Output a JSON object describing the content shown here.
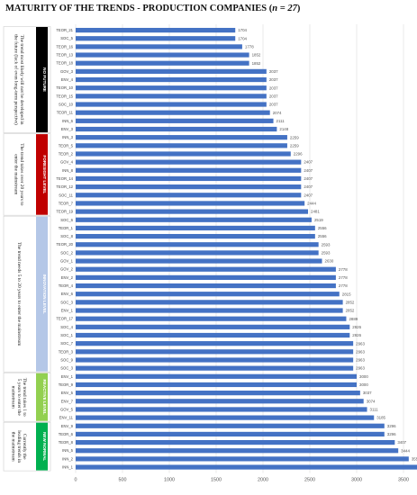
{
  "title": {
    "prefix": "MATURITY OF THE TRENDS - PRODUCTION COMPANIES (",
    "italic": "n = 27",
    "suffix": ")"
  },
  "colors": {
    "bar": "#4472c4",
    "grid": "#d9d9d9"
  },
  "chart_data": {
    "type": "bar",
    "orientation": "horizontal",
    "xlim": [
      0,
      3500
    ],
    "xticks": [
      0,
      500,
      1000,
      1500,
      2000,
      2500,
      3000,
      3500
    ],
    "grid": true,
    "categories": [
      "TEOR_21",
      "SOC_5",
      "TEOR_16",
      "TEOR_13",
      "TEOR_18",
      "GOV_3",
      "ENV_4",
      "TEOR_10",
      "TEOR_15",
      "SOC_10",
      "TEOR_11",
      "INN_6",
      "ENV_3",
      "INN_3",
      "TEOR_5",
      "TEOR_2",
      "GOV_4",
      "INN_8",
      "TEOR_14",
      "TEOR_12",
      "SOC_11",
      "TEOR_7",
      "TEOR_19",
      "SOC_6",
      "TEOR_1",
      "SOC_8",
      "TEOR_20",
      "SOC_2",
      "GOV_1",
      "GOV_2",
      "ENV_2",
      "TEOR_4",
      "ENV_6",
      "SOC_3",
      "ENV_1",
      "TEOR_17",
      "SOC_4",
      "SOC_1",
      "SOC_7",
      "TEOR_3",
      "SOC_9",
      "SOC_3",
      "ENV_1",
      "TEOR_9",
      "ENV_5",
      "ENV_7",
      "GOV_5",
      "ENV_11",
      "ENV_9",
      "TEOR_6",
      "TEOR_8",
      "INN_5",
      "INN_2",
      "INN_1"
    ],
    "values": [
      1704,
      1704,
      1778,
      1852,
      1852,
      2037,
      2037,
      2037,
      2037,
      2037,
      2074,
      2111,
      2148,
      2259,
      2259,
      2296,
      2407,
      2407,
      2407,
      2407,
      2407,
      2444,
      2481,
      2519,
      2556,
      2556,
      2593,
      2593,
      2630,
      2778,
      2778,
      2778,
      2815,
      2852,
      2852,
      2889,
      2926,
      2926,
      2963,
      2963,
      2963,
      2963,
      3000,
      3000,
      3037,
      3074,
      3111,
      3185,
      3296,
      3296,
      3407,
      3444,
      3556,
      3704
    ],
    "value_labels": [
      "1704",
      "1704",
      "1778",
      "1852",
      "1852",
      "2037",
      "2037",
      "2037",
      "2037",
      "2037",
      "2074",
      "2111",
      "2148",
      "2259",
      "2259",
      "2296",
      "2407",
      "2407",
      "2407",
      "2407",
      "2407",
      "2444",
      "2481",
      "2519",
      "2556",
      "2556",
      "2593",
      "2593",
      "2630",
      "2778",
      "2778",
      "2778",
      "2815",
      "2852",
      "2852",
      "2889",
      "2926",
      "2926",
      "2963",
      "2963",
      "2963",
      "2963",
      "3000",
      "3000",
      "3037",
      "3074",
      "3111",
      "3185",
      "3296",
      "3296",
      "3407",
      "3444",
      "3556",
      "3704"
    ],
    "groups": [
      {
        "label": "NO FUTURE",
        "color": "#000000",
        "description": [
          "The trend most likely will not be developed in",
          "the future (lack of even long-term perspective)"
        ],
        "count": 13
      },
      {
        "label": "FORESIGHT LEVEL",
        "color": "#c00000",
        "description": [
          "The trend takes over 20 years to",
          "enter the mainstream"
        ],
        "count": 10
      },
      {
        "label": "INNOVATION LEVEL",
        "color": "#b4c7e7",
        "description": [
          "The trend needs 5 to 20 years to enter the mainstream"
        ],
        "count": 19
      },
      {
        "label": "REACTIVE LEVEL",
        "color": "#92d050",
        "description": [
          "The trend takes 1 to",
          "5 years to enter the",
          "mainstream"
        ],
        "count": 6
      },
      {
        "label": "NEW NORMAL",
        "color": "#00b050",
        "description": [
          "Currently the",
          "leading trends in",
          "the mainstream"
        ],
        "count": 6
      }
    ]
  }
}
